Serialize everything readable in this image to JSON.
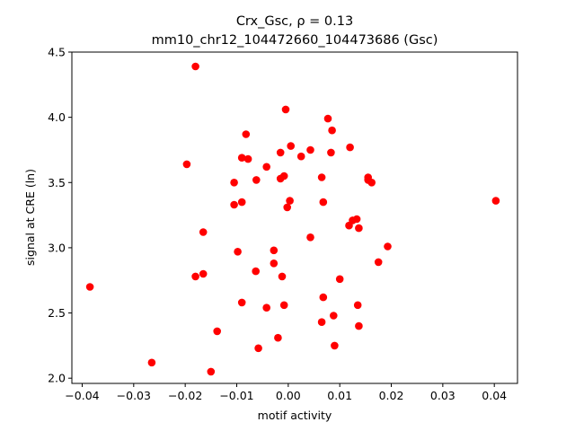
{
  "chart_data": {
    "type": "scatter",
    "title": "Crx_Gsc, ρ = 0.13",
    "subtitle": "mm10_chr12_104472660_104473686 (Gsc)",
    "xlabel": "motif activity",
    "ylabel": "signal at CRE (ln)",
    "xlim": [
      -0.042,
      0.0445
    ],
    "ylim": [
      1.96,
      4.5
    ],
    "xticks": [
      -0.04,
      -0.03,
      -0.02,
      -0.01,
      0.0,
      0.01,
      0.02,
      0.03,
      0.04
    ],
    "xtick_labels": [
      "−0.04",
      "−0.03",
      "−0.02",
      "−0.01",
      "0.00",
      "0.01",
      "0.02",
      "0.03",
      "0.04"
    ],
    "yticks": [
      2.0,
      2.5,
      3.0,
      3.5,
      4.0,
      4.5
    ],
    "ytick_labels": [
      "2.0",
      "2.5",
      "3.0",
      "3.5",
      "4.0",
      "4.5"
    ],
    "grid": false,
    "marker_color": "#ff0000",
    "points": [
      {
        "x": -0.0385,
        "y": 2.7
      },
      {
        "x": -0.0265,
        "y": 2.12
      },
      {
        "x": -0.0197,
        "y": 3.64
      },
      {
        "x": -0.018,
        "y": 4.39
      },
      {
        "x": -0.018,
        "y": 2.78
      },
      {
        "x": -0.0165,
        "y": 3.12
      },
      {
        "x": -0.0165,
        "y": 2.8
      },
      {
        "x": -0.015,
        "y": 2.05
      },
      {
        "x": -0.0138,
        "y": 2.36
      },
      {
        "x": -0.0105,
        "y": 3.5
      },
      {
        "x": -0.0105,
        "y": 3.33
      },
      {
        "x": -0.0098,
        "y": 2.97
      },
      {
        "x": -0.009,
        "y": 3.69
      },
      {
        "x": -0.009,
        "y": 3.35
      },
      {
        "x": -0.009,
        "y": 2.58
      },
      {
        "x": -0.0082,
        "y": 3.87
      },
      {
        "x": -0.0078,
        "y": 3.68
      },
      {
        "x": -0.0062,
        "y": 3.52
      },
      {
        "x": -0.0063,
        "y": 2.82
      },
      {
        "x": -0.0058,
        "y": 2.23
      },
      {
        "x": -0.0042,
        "y": 3.62
      },
      {
        "x": -0.0042,
        "y": 2.54
      },
      {
        "x": -0.0028,
        "y": 2.98
      },
      {
        "x": -0.0028,
        "y": 2.88
      },
      {
        "x": -0.002,
        "y": 2.31
      },
      {
        "x": -0.0015,
        "y": 3.73
      },
      {
        "x": -0.0015,
        "y": 3.53
      },
      {
        "x": -0.0012,
        "y": 2.78
      },
      {
        "x": -0.0008,
        "y": 3.55
      },
      {
        "x": -0.0008,
        "y": 2.56
      },
      {
        "x": -0.0005,
        "y": 4.06
      },
      {
        "x": -0.0002,
        "y": 3.31
      },
      {
        "x": 0.0003,
        "y": 3.36
      },
      {
        "x": 0.0005,
        "y": 3.78
      },
      {
        "x": 0.0025,
        "y": 3.7
      },
      {
        "x": 0.0043,
        "y": 3.75
      },
      {
        "x": 0.0043,
        "y": 3.08
      },
      {
        "x": 0.0065,
        "y": 3.54
      },
      {
        "x": 0.0068,
        "y": 3.35
      },
      {
        "x": 0.0068,
        "y": 2.62
      },
      {
        "x": 0.0065,
        "y": 2.43
      },
      {
        "x": 0.0077,
        "y": 3.99
      },
      {
        "x": 0.0085,
        "y": 3.9
      },
      {
        "x": 0.0083,
        "y": 3.73
      },
      {
        "x": 0.0088,
        "y": 2.48
      },
      {
        "x": 0.009,
        "y": 2.25
      },
      {
        "x": 0.01,
        "y": 2.76
      },
      {
        "x": 0.012,
        "y": 3.77
      },
      {
        "x": 0.0118,
        "y": 3.17
      },
      {
        "x": 0.0125,
        "y": 3.21
      },
      {
        "x": 0.0133,
        "y": 3.22
      },
      {
        "x": 0.0137,
        "y": 3.15
      },
      {
        "x": 0.0135,
        "y": 2.56
      },
      {
        "x": 0.0137,
        "y": 2.4
      },
      {
        "x": 0.0155,
        "y": 3.54
      },
      {
        "x": 0.0155,
        "y": 3.52
      },
      {
        "x": 0.0162,
        "y": 3.5
      },
      {
        "x": 0.0175,
        "y": 2.89
      },
      {
        "x": 0.0193,
        "y": 3.01
      },
      {
        "x": 0.0403,
        "y": 3.36
      }
    ]
  }
}
